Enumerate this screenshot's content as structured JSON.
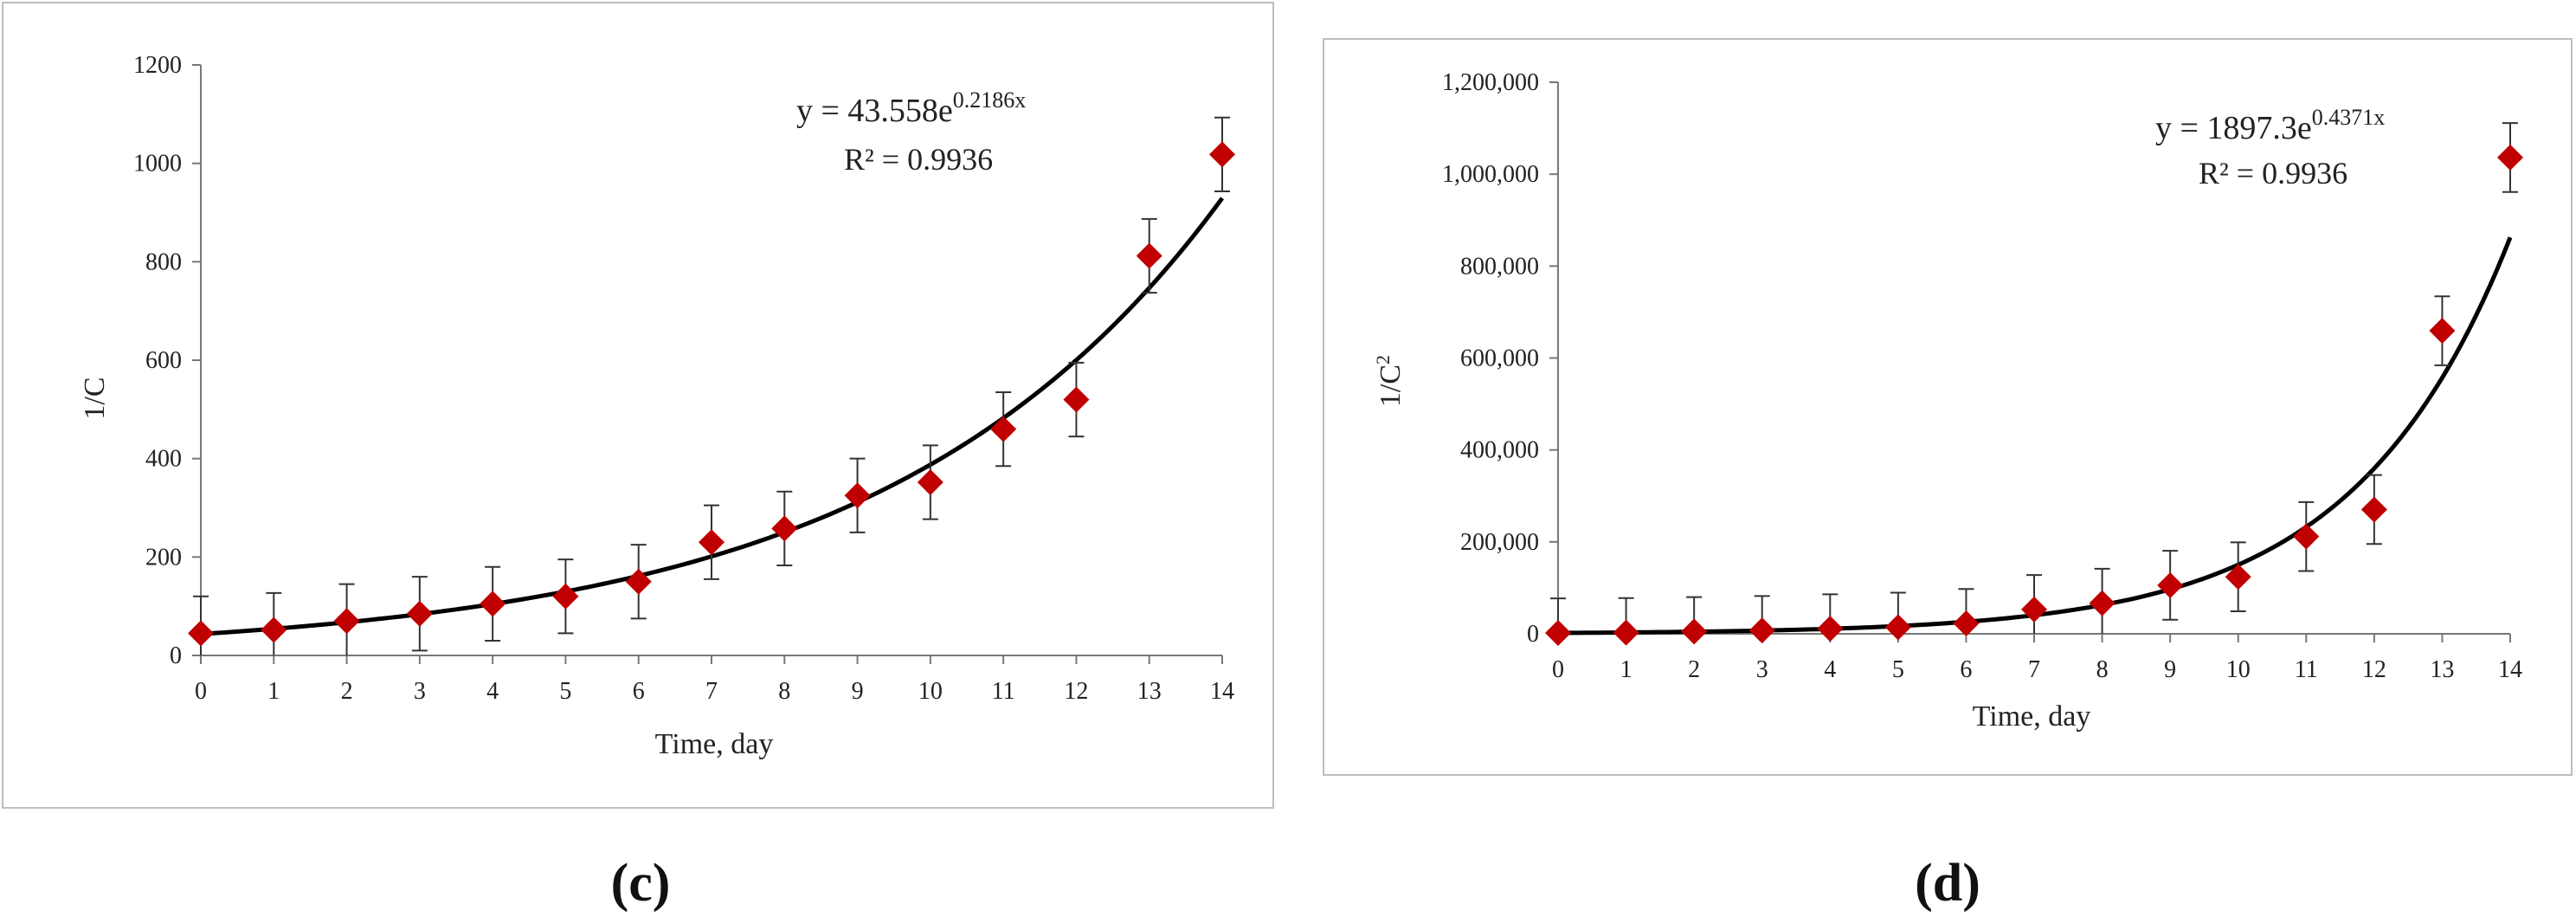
{
  "chart_data": [
    {
      "type": "scatter",
      "panel_label": "(c)",
      "xlabel": "Time, day",
      "ylabel": "1/C",
      "xlim": [
        0,
        14
      ],
      "ylim": [
        0,
        1200
      ],
      "x_ticks": [
        "0",
        "1",
        "2",
        "3",
        "4",
        "5",
        "6",
        "7",
        "8",
        "9",
        "10",
        "11",
        "12",
        "13",
        "14"
      ],
      "y_ticks": [
        "0",
        "200",
        "400",
        "600",
        "800",
        "1000",
        "1200"
      ],
      "series": [
        {
          "x": [
            0,
            1,
            2,
            3,
            4,
            5,
            6,
            7,
            8,
            9,
            10,
            11,
            12,
            13,
            14
          ],
          "y": [
            45,
            52,
            70,
            85,
            105,
            120,
            150,
            230,
            258,
            325,
            352,
            460,
            520,
            812,
            1018
          ],
          "error": [
            75,
            75,
            75,
            75,
            75,
            75,
            75,
            75,
            75,
            75,
            75,
            75,
            75,
            75,
            75
          ],
          "color": "#c00000",
          "marker": "diamond"
        }
      ],
      "trendline": {
        "type": "exponential",
        "a": 43.558,
        "b": 0.2186,
        "color": "#000000"
      },
      "equation": {
        "prefix": "y = 43.558e",
        "exponent": "0.2186x"
      },
      "r_squared": "R² = 0.9936",
      "grid": false,
      "frame": true
    },
    {
      "type": "scatter",
      "panel_label": "(d)",
      "xlabel": "Time, day",
      "ylabel_main": "1/C",
      "ylabel_sup": "2",
      "xlim": [
        0,
        14
      ],
      "ylim": [
        0,
        1200000
      ],
      "x_ticks": [
        "0",
        "1",
        "2",
        "3",
        "4",
        "5",
        "6",
        "7",
        "8",
        "9",
        "10",
        "11",
        "12",
        "13",
        "14"
      ],
      "y_ticks": [
        "0",
        "200,000",
        "400,000",
        "600,000",
        "800,000",
        "1,000,000",
        "1,200,000"
      ],
      "series": [
        {
          "x": [
            0,
            1,
            2,
            3,
            4,
            5,
            6,
            7,
            8,
            9,
            10,
            11,
            12,
            13,
            14
          ],
          "y": [
            2000,
            2700,
            4900,
            7200,
            11000,
            14400,
            22500,
            52900,
            66600,
            105600,
            123900,
            211600,
            270400,
            659300,
            1036300
          ],
          "error": [
            75000,
            75000,
            75000,
            75000,
            75000,
            75000,
            75000,
            75000,
            75000,
            75000,
            75000,
            75000,
            75000,
            75000,
            75000
          ],
          "color": "#c00000",
          "marker": "diamond"
        }
      ],
      "trendline": {
        "type": "exponential",
        "a": 1897.3,
        "b": 0.4371,
        "color": "#000000"
      },
      "equation": {
        "prefix": "y = 1897.3e",
        "exponent": "0.4371x"
      },
      "r_squared": "R² = 0.9936",
      "grid": false,
      "frame": true
    }
  ]
}
